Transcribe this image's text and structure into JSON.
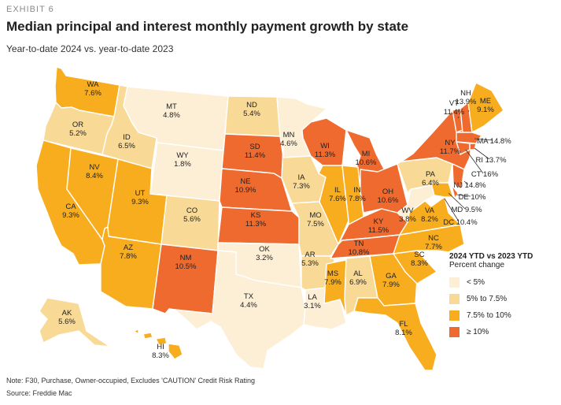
{
  "header": {
    "exhibit": "EXHIBIT 6",
    "title": "Median principal and interest monthly payment growth by state",
    "subtitle": "Year-to-date 2024 vs. year-to-date 2023"
  },
  "legend": {
    "title": "2024 YTD vs 2023 YTD",
    "subtitle": "Percent change",
    "items": [
      {
        "label": "< 5%",
        "color": "#fcefd6"
      },
      {
        "label": "5% to 7.5%",
        "color": "#f8d995"
      },
      {
        "label": "7.5% to 10%",
        "color": "#f8ad1f"
      },
      {
        "label": "≥ 10%",
        "color": "#ef6a2f"
      }
    ]
  },
  "footer": {
    "note": "Note: F30, Purchase, Owner-occupied, Excludes 'CAUTION' Credit Risk Rating",
    "source": "Source: Freddie Mac"
  },
  "states": [
    {
      "abbr": "WA",
      "value": "7.6%",
      "bin": 2
    },
    {
      "abbr": "OR",
      "value": "5.2%",
      "bin": 1
    },
    {
      "abbr": "CA",
      "value": "9.3%",
      "bin": 2
    },
    {
      "abbr": "NV",
      "value": "8.4%",
      "bin": 2
    },
    {
      "abbr": "ID",
      "value": "6.5%",
      "bin": 1
    },
    {
      "abbr": "MT",
      "value": "4.8%",
      "bin": 0
    },
    {
      "abbr": "WY",
      "value": "1.8%",
      "bin": 0
    },
    {
      "abbr": "UT",
      "value": "9.3%",
      "bin": 2
    },
    {
      "abbr": "AZ",
      "value": "7.8%",
      "bin": 2
    },
    {
      "abbr": "CO",
      "value": "5.6%",
      "bin": 1
    },
    {
      "abbr": "NM",
      "value": "10.5%",
      "bin": 3
    },
    {
      "abbr": "ND",
      "value": "5.4%",
      "bin": 1
    },
    {
      "abbr": "SD",
      "value": "11.4%",
      "bin": 3
    },
    {
      "abbr": "NE",
      "value": "10.9%",
      "bin": 3
    },
    {
      "abbr": "KS",
      "value": "11.3%",
      "bin": 3
    },
    {
      "abbr": "OK",
      "value": "3.2%",
      "bin": 0
    },
    {
      "abbr": "TX",
      "value": "4.4%",
      "bin": 0
    },
    {
      "abbr": "MN",
      "value": "4.6%",
      "bin": 0
    },
    {
      "abbr": "IA",
      "value": "7.3%",
      "bin": 1
    },
    {
      "abbr": "MO",
      "value": "7.5%",
      "bin": 1
    },
    {
      "abbr": "AR",
      "value": "5.3%",
      "bin": 1
    },
    {
      "abbr": "LA",
      "value": "3.1%",
      "bin": 0
    },
    {
      "abbr": "WI",
      "value": "11.3%",
      "bin": 3
    },
    {
      "abbr": "IL",
      "value": "7.6%",
      "bin": 2
    },
    {
      "abbr": "MI",
      "value": "10.6%",
      "bin": 3
    },
    {
      "abbr": "IN",
      "value": "7.8%",
      "bin": 2
    },
    {
      "abbr": "OH",
      "value": "10.6%",
      "bin": 3
    },
    {
      "abbr": "KY",
      "value": "11.5%",
      "bin": 3
    },
    {
      "abbr": "TN",
      "value": "10.8%",
      "bin": 3
    },
    {
      "abbr": "MS",
      "value": "7.9%",
      "bin": 2
    },
    {
      "abbr": "AL",
      "value": "6.9%",
      "bin": 1
    },
    {
      "abbr": "GA",
      "value": "7.9%",
      "bin": 2
    },
    {
      "abbr": "FL",
      "value": "8.1%",
      "bin": 2
    },
    {
      "abbr": "SC",
      "value": "8.3%",
      "bin": 2
    },
    {
      "abbr": "NC",
      "value": "7.7%",
      "bin": 2
    },
    {
      "abbr": "VA",
      "value": "8.2%",
      "bin": 2
    },
    {
      "abbr": "WV",
      "value": "3.8%",
      "bin": 0
    },
    {
      "abbr": "PA",
      "value": "6.4%",
      "bin": 1
    },
    {
      "abbr": "NY",
      "value": "11.7%",
      "bin": 3
    },
    {
      "abbr": "VT",
      "value": "11.4%",
      "bin": 3
    },
    {
      "abbr": "NH",
      "value": "13.9%",
      "bin": 3
    },
    {
      "abbr": "ME",
      "value": "9.1%",
      "bin": 2
    },
    {
      "abbr": "MA",
      "value": "14.8%",
      "bin": 3
    },
    {
      "abbr": "RI",
      "value": "13.7%",
      "bin": 3
    },
    {
      "abbr": "CT",
      "value": "16%",
      "bin": 3
    },
    {
      "abbr": "NJ",
      "value": "14.8%",
      "bin": 3
    },
    {
      "abbr": "DE",
      "value": "10%",
      "bin": 3
    },
    {
      "abbr": "MD",
      "value": "9.5%",
      "bin": 2
    },
    {
      "abbr": "DC",
      "value": "10.4%",
      "bin": 3
    },
    {
      "abbr": "AK",
      "value": "5.6%",
      "bin": 1
    },
    {
      "abbr": "HI",
      "value": "8.3%",
      "bin": 2
    }
  ]
}
